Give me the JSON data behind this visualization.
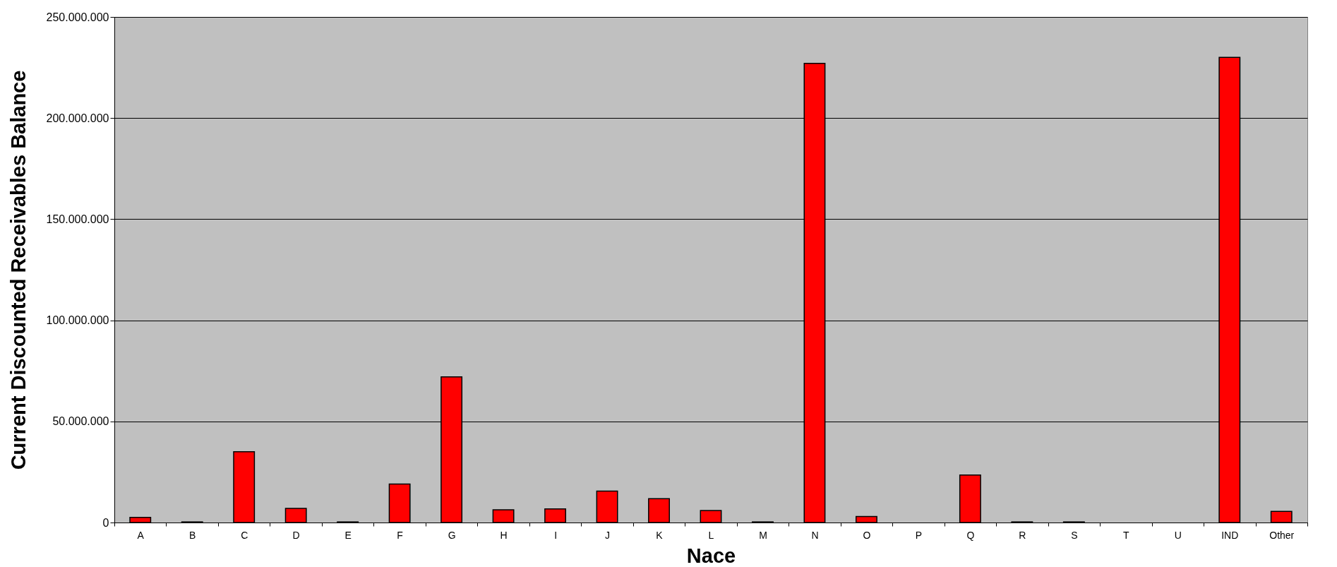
{
  "chart_data": {
    "type": "bar",
    "xlabel": "Nace",
    "ylabel": "Current Discounted Receivables Balance",
    "categories": [
      "A",
      "B",
      "C",
      "D",
      "E",
      "F",
      "G",
      "H",
      "I",
      "J",
      "K",
      "L",
      "M",
      "N",
      "O",
      "P",
      "Q",
      "R",
      "S",
      "T",
      "U",
      "IND",
      "Other"
    ],
    "values": [
      2500000,
      300000,
      35000000,
      7000000,
      300000,
      19000000,
      72000000,
      6300000,
      6700000,
      15500000,
      11800000,
      5900000,
      300000,
      227000000,
      3000000,
      0,
      23500000,
      300000,
      300000,
      0,
      0,
      230000000,
      5500000
    ],
    "color": "#ff0000",
    "ylim": [
      0,
      250000000
    ],
    "yticks": [
      {
        "value": 0,
        "label": "0"
      },
      {
        "value": 50000000,
        "label": "50.000.000"
      },
      {
        "value": 100000000,
        "label": "100.000.000"
      },
      {
        "value": 150000000,
        "label": "150.000.000"
      },
      {
        "value": 200000000,
        "label": "200.000.000"
      },
      {
        "value": 250000000,
        "label": "250.000.000"
      }
    ],
    "grid": "y"
  }
}
